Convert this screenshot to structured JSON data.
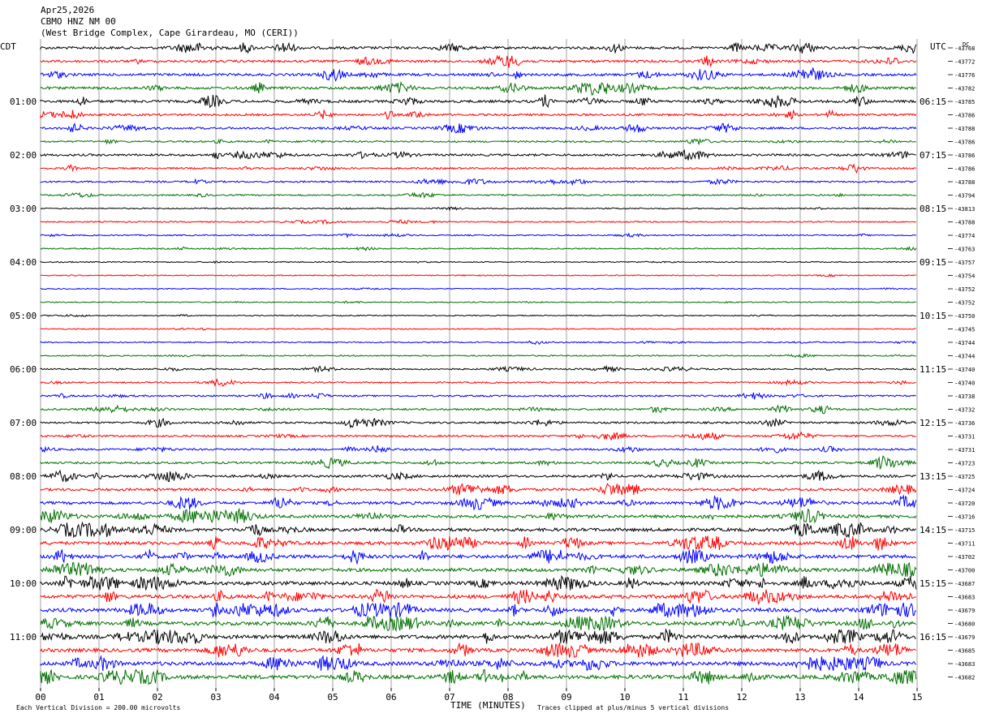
{
  "header": {
    "date": "Apr25,2026",
    "station": "CBMO HNZ NM 00",
    "location": "(West Bridge Complex, Cape Girardeau, MO (CERI))"
  },
  "left_timezone": "CDT",
  "right_timezone": "UTC",
  "dc_label": "DC",
  "footer": {
    "scale_note": "Each Vertical Division =  200.00 microvolts",
    "xlabel": "TIME (MINUTES)",
    "clip_note": "Traces clipped at plus/minus 5 vertical divisions"
  },
  "chart_data": {
    "type": "line",
    "title": "CBMO HNZ NM 00",
    "xlabel": "TIME (MINUTES)",
    "ylabel": "",
    "xlim": [
      0,
      15
    ],
    "x_ticks": [
      "00",
      "01",
      "02",
      "03",
      "04",
      "05",
      "06",
      "07",
      "08",
      "09",
      "10",
      "11",
      "12",
      "13",
      "14",
      "15"
    ],
    "left_hour_labels": [
      "01:00",
      "02:00",
      "03:00",
      "04:00",
      "05:00",
      "06:00",
      "07:00",
      "08:00",
      "09:00",
      "10:00",
      "11:00"
    ],
    "right_hour_labels": [
      "06:15",
      "07:15",
      "08:15",
      "09:15",
      "10:15",
      "11:15",
      "12:15",
      "13:15",
      "14:15",
      "15:15",
      "16:15"
    ],
    "trace_colors": [
      "#000000",
      "#ff0000",
      "#0000ff",
      "#007000"
    ],
    "grid": true,
    "traces_per_hour": 4,
    "trace_minutes": 15,
    "dc_offsets": [
      -43768,
      -43772,
      -43776,
      -43782,
      -43785,
      -43786,
      -43788,
      -43786,
      -43786,
      -43786,
      -43788,
      -43794,
      -43813,
      -43788,
      -43774,
      -43763,
      -43757,
      -43754,
      -43752,
      -43752,
      -43750,
      -43745,
      -43744,
      -43744,
      -43740,
      -43740,
      -43738,
      -43732,
      -43736,
      -43731,
      -43731,
      -43723,
      -43725,
      -43724,
      -43720,
      -43716,
      -43715,
      -43711,
      -43702,
      -43700,
      -43687,
      -43683,
      -43679,
      -43680,
      -43679,
      -43685,
      -43683,
      -43682
    ],
    "activity": [
      0.8,
      0.7,
      0.8,
      0.8,
      0.8,
      0.6,
      0.6,
      0.4,
      0.6,
      0.4,
      0.4,
      0.3,
      0.15,
      0.2,
      0.2,
      0.2,
      0.1,
      0.1,
      0.1,
      0.1,
      0.1,
      0.1,
      0.2,
      0.2,
      0.3,
      0.3,
      0.4,
      0.5,
      0.5,
      0.5,
      0.5,
      0.6,
      0.7,
      0.8,
      0.9,
      1.0,
      1.1,
      1.1,
      1.2,
      1.2,
      1.3,
      1.3,
      1.3,
      1.3,
      1.3,
      1.3,
      1.4,
      1.4
    ]
  }
}
